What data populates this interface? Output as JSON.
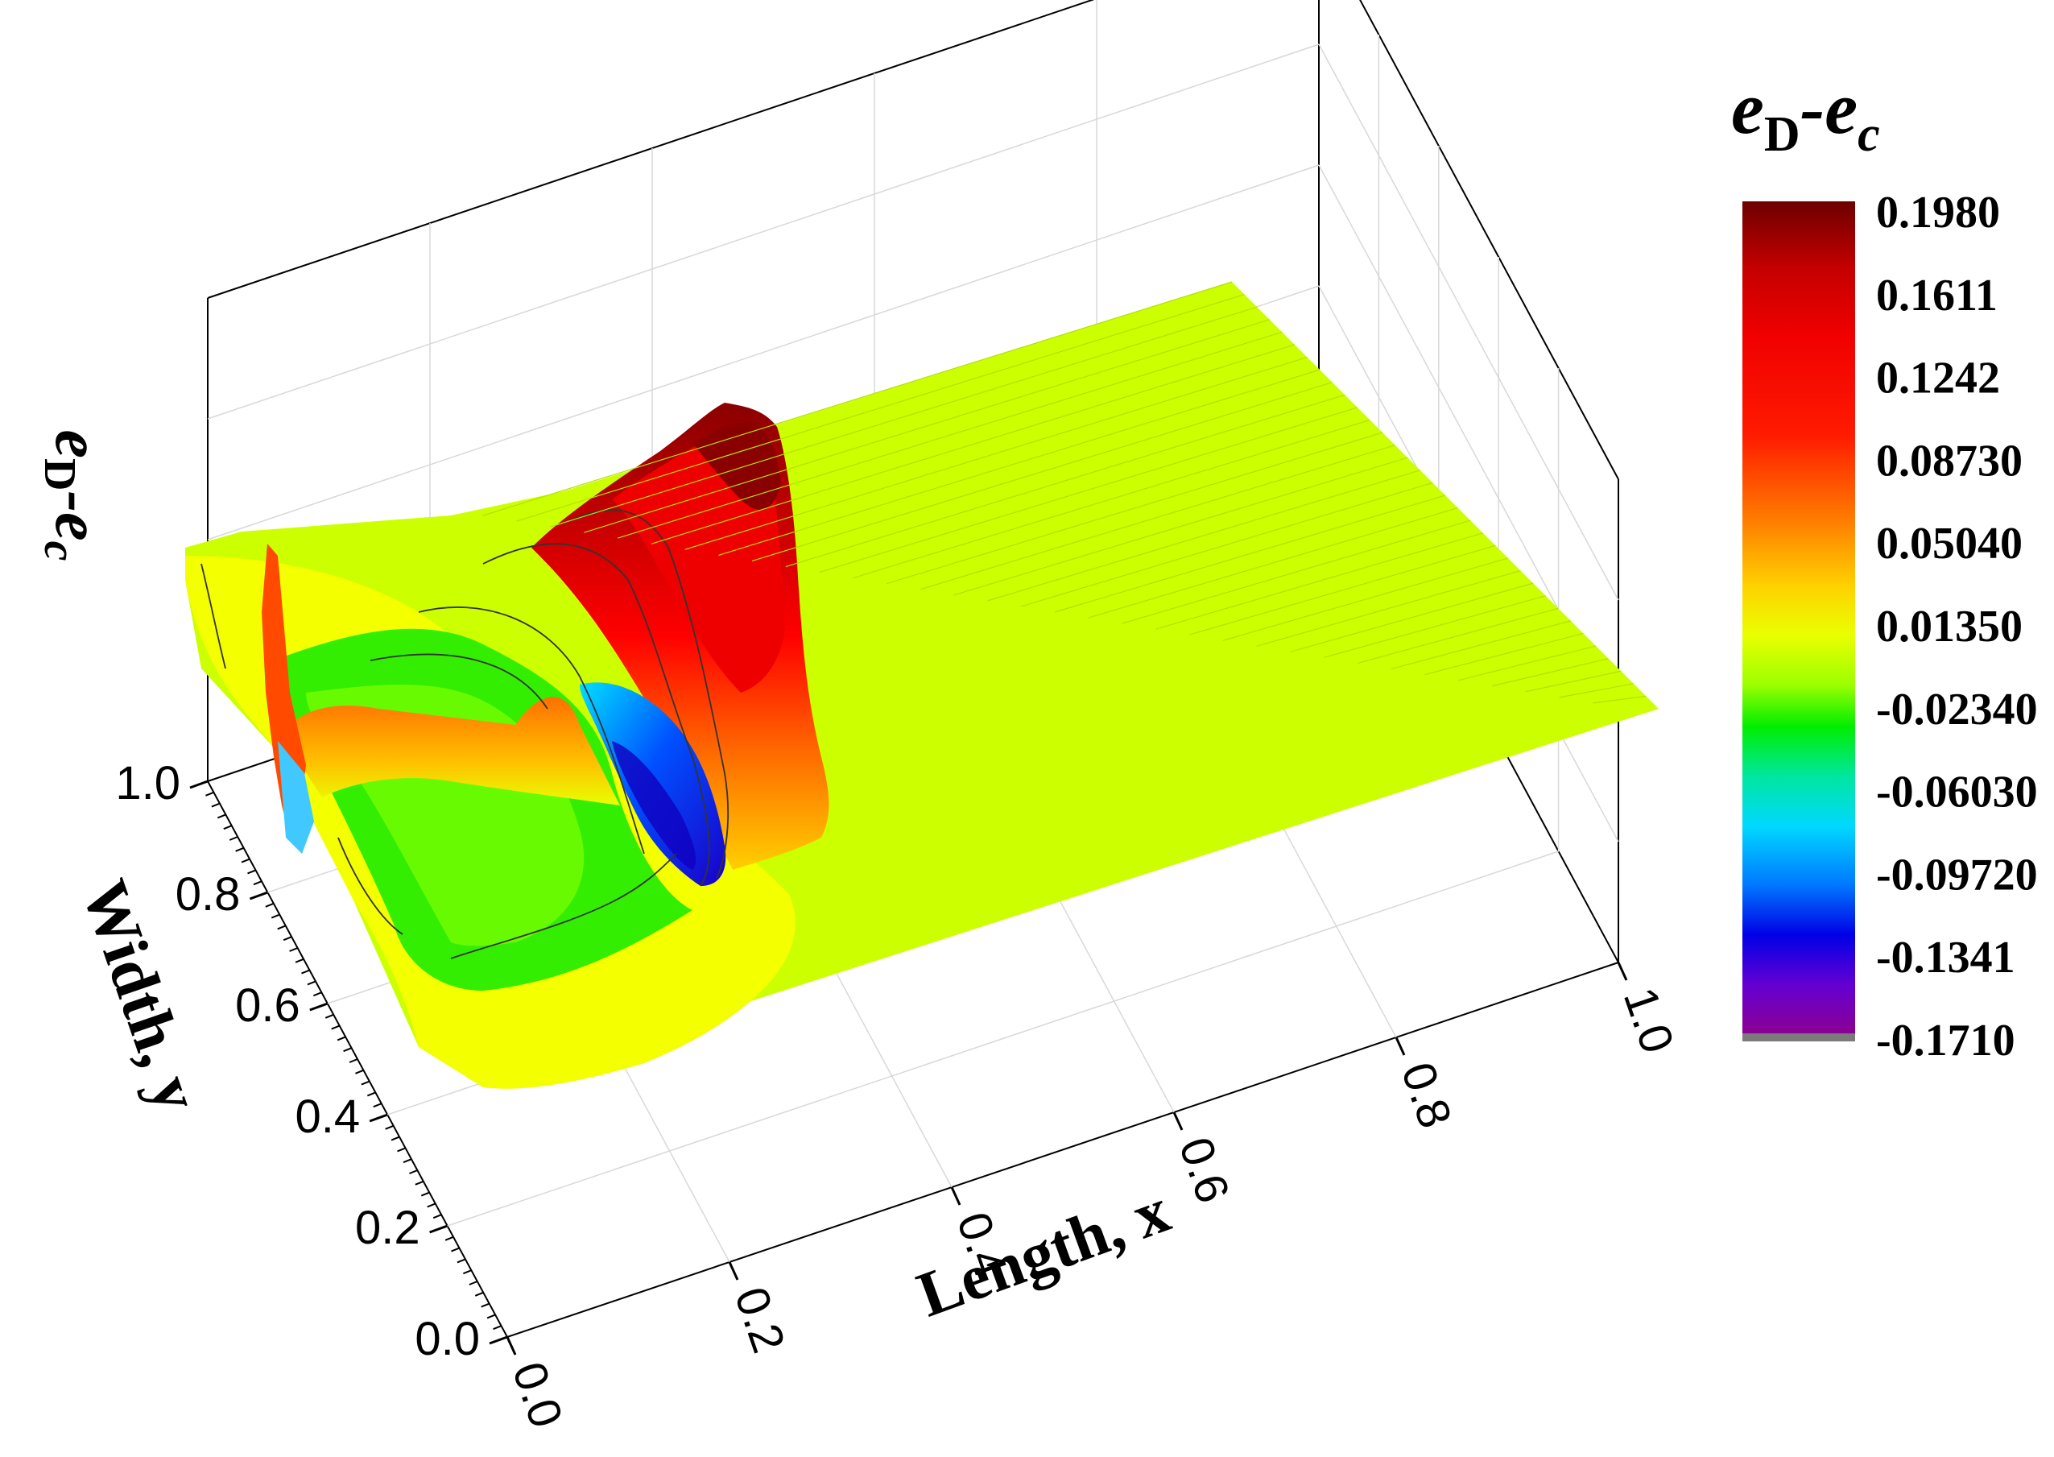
{
  "chart_data": {
    "type": "surface3d",
    "title": "",
    "z_label": {
      "main": "e",
      "sub1": "D",
      "mid": "-e",
      "sub2": "c"
    },
    "x_label": "Length, x",
    "y_label": "Width, y",
    "x_ticks": [
      "0.0",
      "0.2",
      "0.4",
      "0.6",
      "0.8",
      "1.0"
    ],
    "y_ticks": [
      "0.0",
      "0.2",
      "0.4",
      "0.6",
      "0.8",
      "1.0"
    ],
    "xlim": [
      0,
      1
    ],
    "ylim": [
      0,
      1
    ],
    "zlim": [
      -0.171,
      0.198
    ],
    "grid": true,
    "colorbar": {
      "title": {
        "main": "e",
        "sub1": "D",
        "mid": "-e",
        "sub2": "c"
      },
      "levels": [
        "0.1980",
        "0.1611",
        "0.1242",
        "0.08730",
        "0.05040",
        "0.01350",
        "-0.02340",
        "-0.06030",
        "-0.09720",
        "-0.1341",
        "-0.1710"
      ],
      "colors": [
        "#6e0000",
        "#c80000",
        "#ff0000",
        "#ff3a00",
        "#ff8c00",
        "#ffd200",
        "#e6ff00",
        "#a0ff00",
        "#00f000",
        "#00e6b4",
        "#00c8ff",
        "#0064ff",
        "#0000e6",
        "#6400d2",
        "#8c00a0",
        "#7a7a7a"
      ]
    }
  }
}
